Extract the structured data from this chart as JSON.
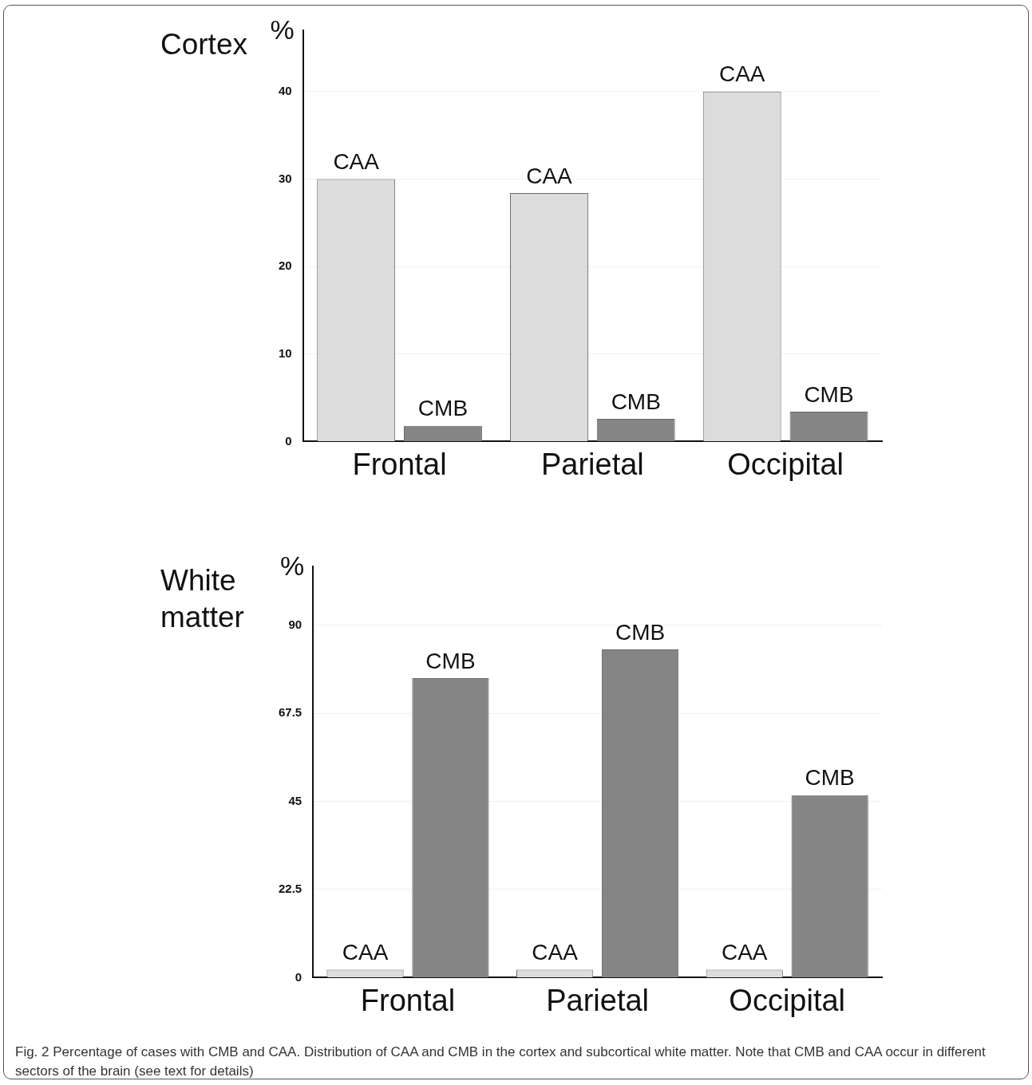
{
  "chart_data": [
    {
      "type": "bar",
      "title": "Cortex",
      "ylabel": "%",
      "categories": [
        "Frontal",
        "Parietal",
        "Occipital"
      ],
      "series": [
        {
          "name": "CAA",
          "color": "#dcdcdc",
          "values": [
            30,
            28.4,
            40
          ]
        },
        {
          "name": "CMB",
          "color": "#858585",
          "values": [
            1.8,
            2.6,
            3.4
          ]
        }
      ],
      "ylim": [
        0,
        47
      ],
      "yticks": [
        0,
        10,
        20,
        30,
        40
      ],
      "grid": "y",
      "legend": false
    },
    {
      "type": "bar",
      "title": "White matter",
      "ylabel": "%",
      "categories": [
        "Frontal",
        "Parietal",
        "Occipital"
      ],
      "series": [
        {
          "name": "CAA",
          "color": "#dcdcdc",
          "values": [
            2,
            2,
            2
          ]
        },
        {
          "name": "CMB",
          "color": "#858585",
          "values": [
            76.5,
            83.8,
            46.6
          ]
        }
      ],
      "ylim": [
        0,
        105
      ],
      "yticks": [
        0,
        22.5,
        45,
        67.5,
        90
      ],
      "grid": "y",
      "legend": false,
      "annotations": [
        "Fig. 2 Percentage of cases with CMB and CAA. Distribution of CAA and CMB in the cortex and subcortical white matter. Note that CMB and CAA occur in different sectors of the brain (see text for details)"
      ]
    }
  ]
}
